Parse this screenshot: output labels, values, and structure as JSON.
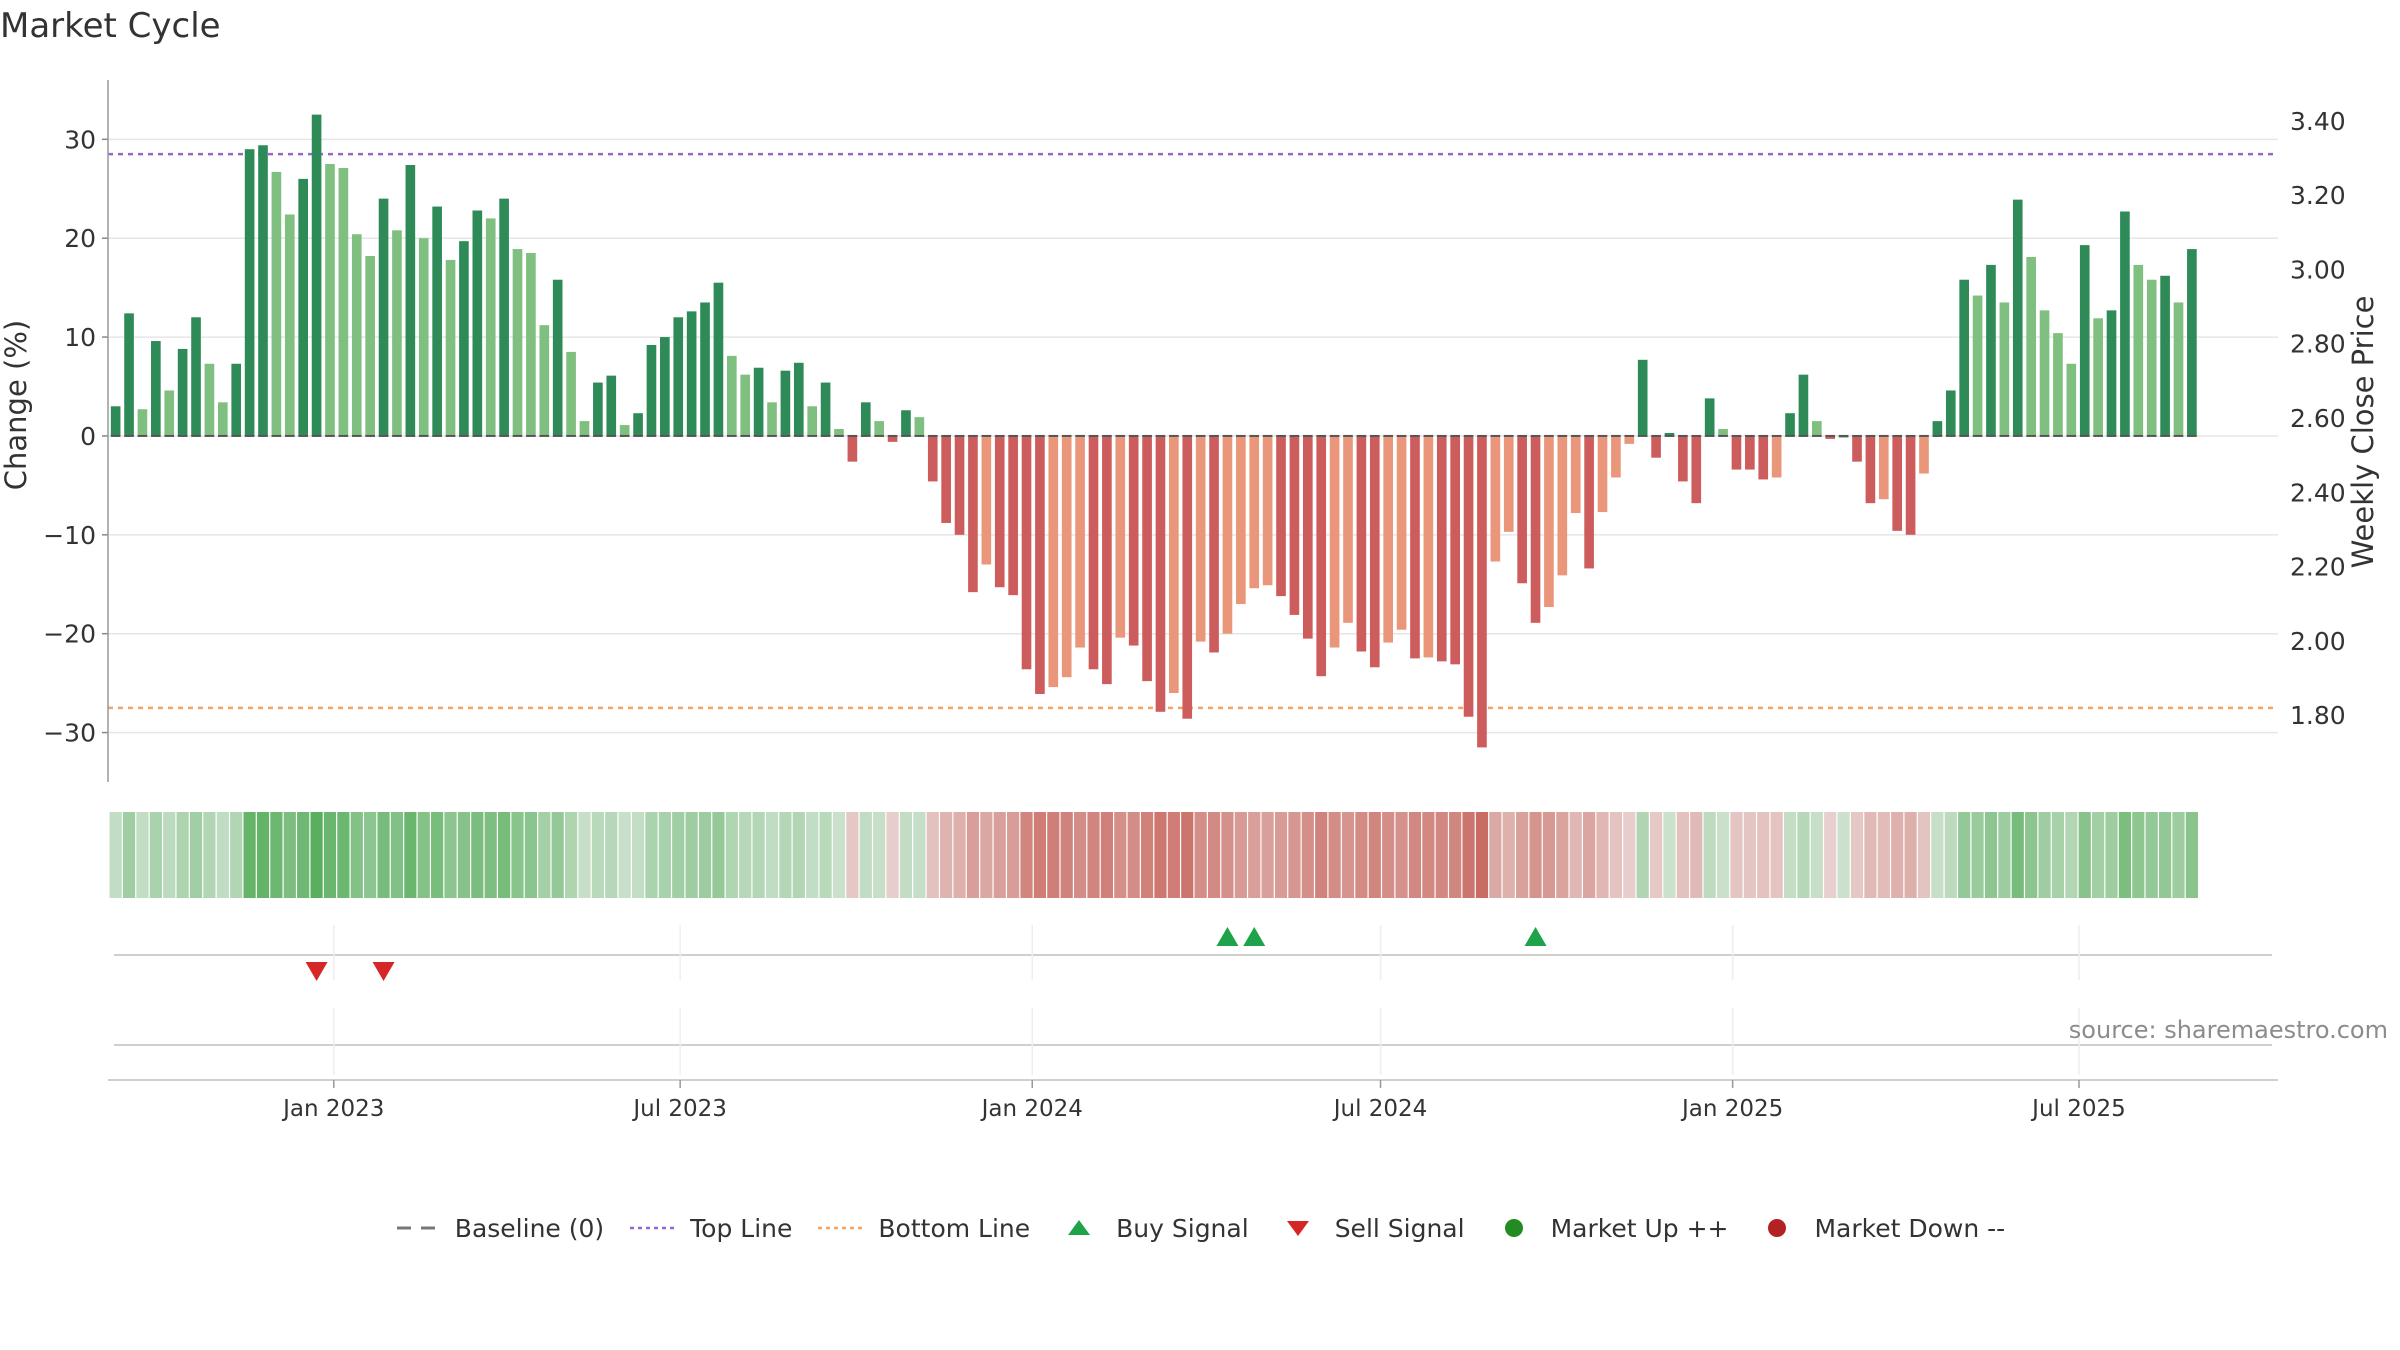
{
  "title": "Market Cycle",
  "source": "source: sharemaestro.com",
  "colors": {
    "up_strong": "#2e8b57",
    "up_light": "#7fbf7f",
    "down_strong": "#cd5c5c",
    "down_light": "#e9967a",
    "top_line": "#9966cc",
    "bottom_line": "#f4a460",
    "buy": "#1fa34a",
    "sell": "#d62728",
    "market_up": "#228b22",
    "market_down": "#b22222"
  },
  "legend": [
    {
      "key": "baseline",
      "label": "Baseline (0)",
      "color": "#777777"
    },
    {
      "key": "top",
      "label": "Top Line",
      "color": "#9966cc"
    },
    {
      "key": "bottom",
      "label": "Bottom Line",
      "color": "#f4a460"
    },
    {
      "key": "buy",
      "label": "Buy Signal",
      "color": "#1fa34a"
    },
    {
      "key": "sell",
      "label": "Sell Signal",
      "color": "#d62728"
    },
    {
      "key": "mup",
      "label": "Market Up ++",
      "color": "#228b22"
    },
    {
      "key": "mdown",
      "label": "Market Down --",
      "color": "#b22222"
    }
  ],
  "chart_data": {
    "type": "bar",
    "title": "Market Cycle",
    "ylabel": "Change (%)",
    "y2label": "Weekly Close Price",
    "ylim": [
      -35,
      36
    ],
    "y_ticks": [
      30,
      20,
      10,
      0,
      -10,
      -20,
      -30
    ],
    "y_tick_labels": [
      "30",
      "20",
      "10",
      "0",
      "−10",
      "−20",
      "−30"
    ],
    "y2lim": [
      1.62,
      3.51
    ],
    "y2_ticks": [
      3.4,
      3.2,
      3.0,
      2.8,
      2.6,
      2.4,
      2.2,
      2.0,
      1.8
    ],
    "y2_tick_labels": [
      "3.40",
      "3.20",
      "3.00",
      "2.80",
      "2.60",
      "2.40",
      "2.20",
      "2.00",
      "1.80"
    ],
    "x_start": "2022-09-05",
    "x_end": "2025-10-13",
    "x_ticks": [
      {
        "date": "2023-01-01",
        "label": "Jan 2023"
      },
      {
        "date": "2023-07-01",
        "label": "Jul 2023"
      },
      {
        "date": "2024-01-01",
        "label": "Jan 2024"
      },
      {
        "date": "2024-07-01",
        "label": "Jul 2024"
      },
      {
        "date": "2025-01-01",
        "label": "Jan 2025"
      },
      {
        "date": "2025-07-01",
        "label": "Jul 2025"
      }
    ],
    "top_line": 28.5,
    "bottom_line": -27.5,
    "bar_start": "2022-09-09",
    "bar_interval_days": 7,
    "values": [
      3,
      12.4,
      2.7,
      9.6,
      4.6,
      8.8,
      12,
      7.3,
      3.4,
      7.3,
      29,
      29.4,
      26.7,
      22.4,
      26,
      32.5,
      27.5,
      27.1,
      20.4,
      18.2,
      24,
      20.8,
      27.4,
      20,
      23.2,
      17.8,
      19.7,
      22.8,
      22,
      24,
      18.9,
      18.5,
      11.2,
      15.8,
      8.5,
      1.5,
      5.4,
      6.1,
      1.1,
      2.3,
      9.2,
      10,
      12,
      12.6,
      13.5,
      15.5,
      8.1,
      6.2,
      6.9,
      3.4,
      6.6,
      7.4,
      3,
      5.4,
      0.7,
      -2.6,
      3.4,
      1.5,
      -0.6,
      2.6,
      1.9,
      -4.6,
      -8.8,
      -10,
      -15.8,
      -13,
      -15.3,
      -16.1,
      -23.6,
      -26.1,
      -25.4,
      -24.4,
      -21.4,
      -23.6,
      -25.1,
      -20.4,
      -21.2,
      -24.8,
      -27.9,
      -26,
      -28.6,
      -20.8,
      -21.9,
      -20,
      -17,
      -15.4,
      -15.1,
      -16.2,
      -18.1,
      -20.5,
      -24.3,
      -21.4,
      -18.9,
      -21.8,
      -23.4,
      -20.9,
      -19.6,
      -22.5,
      -22.4,
      -22.8,
      -23.1,
      -28.4,
      -31.5,
      -12.7,
      -9.7,
      -14.9,
      -18.9,
      -17.3,
      -14.1,
      -7.8,
      -13.4,
      -7.7,
      -4.2,
      -0.8,
      7.7,
      -2.2,
      0.3,
      -4.6,
      -6.8,
      3.8,
      0.7,
      -3.4,
      -3.4,
      -4.4,
      -4.2,
      2.3,
      6.2,
      1.5,
      -0.3,
      0,
      -2.6,
      -6.8,
      -6.4,
      -9.6,
      -10,
      -3.8,
      1.5,
      4.6,
      15.8,
      14.2,
      17.3,
      13.5,
      23.9,
      18.1,
      12.7,
      10.4,
      7.3,
      19.3,
      11.9,
      12.7,
      22.7,
      17.3,
      15.8,
      16.2,
      13.5,
      18.9
    ],
    "buy_signals": [
      "2024-04-12",
      "2024-04-26",
      "2024-09-20"
    ],
    "sell_signals": [
      "2022-12-23",
      "2023-01-27"
    ]
  }
}
